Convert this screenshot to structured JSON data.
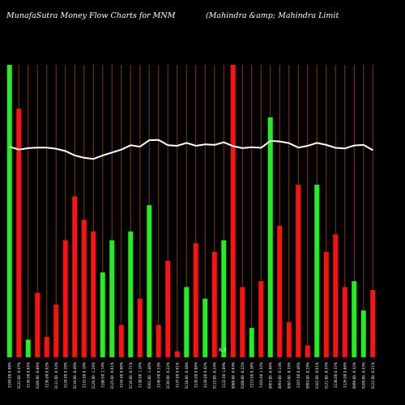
{
  "title_left": "MunafaSutra  Money Flow  Charts for MNM",
  "title_right": "(Mahindra  &amp;  Mahindra  Limit",
  "colors": {
    "background": "#000000",
    "up": "#22ee22",
    "down": "#ff1111",
    "grid": "#7a3c0a",
    "line": "#ffffff",
    "text": "#ffffff"
  },
  "chart_data": {
    "type": "bar",
    "title": "MunafaSutra  Money Flow  Charts for MNM",
    "ylim": [
      0,
      100
    ],
    "grid": true,
    "categories": [
      "3169.00 0.99%",
      "3121.00 -0.47%",
      "3136.00 0.65%",
      "3109.00 -0.86%",
      "3136.00 0.92%",
      "3111.00 -0.54%",
      "3128.00 0.29%",
      "3119.00 -0.40%",
      "3132.00 0.10%",
      "3129.00 -1.26%",
      "3180.00 1.74%",
      "3125.00 -0.61%",
      "3144.00 0.90%",
      "3116.00 -0.71%",
      "3138.00 1.16%",
      "3102.00 -1.40%",
      "3146.00 0.53%",
      "3130.00 -0.22%",
      "3137.00 0.61%",
      "3118.00 -0.38%",
      "3130.00 0.06%",
      "3128.00 0.42%",
      "3115.00 -0.24%",
      "3122.00 1.09%",
      "3088.00 -0.64%",
      "3108.00 -0.22%",
      "3115.00 0.38%",
      "3103.00 1.32%",
      "3063.00 -0.96%",
      "3093.00 -0.14%",
      "3097.00 -0.33%",
      "3107.00 0.46%",
      "3093.00 -0.29%",
      "3102.00 -0.61%",
      "3121.00 -0.55%",
      "3138.00 0.37%",
      "3126.00 0.86%",
      "3099.00 -0.32%",
      "3109.00 -0.43%",
      "3122.00 -0.21%"
    ],
    "values": [
      100,
      85,
      6,
      22,
      7,
      18,
      40,
      55,
      47,
      43,
      29,
      40,
      11,
      43,
      20,
      52,
      11,
      33,
      2,
      24,
      39,
      20,
      36,
      40,
      100,
      24,
      10,
      26,
      82,
      45,
      12,
      59,
      4,
      59,
      36,
      42,
      24,
      26,
      16,
      23
    ],
    "directions": [
      "up",
      "down",
      "up",
      "down",
      "down",
      "down",
      "down",
      "down",
      "down",
      "down",
      "up",
      "up",
      "down",
      "up",
      "down",
      "up",
      "down",
      "down",
      "down",
      "up",
      "down",
      "up",
      "down",
      "up",
      "down",
      "down",
      "up",
      "down",
      "up",
      "down",
      "down",
      "down",
      "down",
      "up",
      "down",
      "down",
      "down",
      "up",
      "up",
      "down"
    ],
    "series": [
      {
        "type": "line",
        "values": [
          72,
          71,
          71.5,
          71.7,
          71.7,
          71.3,
          70.5,
          69,
          68.2,
          67.8,
          69,
          70,
          71,
          72.5,
          72,
          74.2,
          74.3,
          72.5,
          72.3,
          73.3,
          72.3,
          72.8,
          72.6,
          73.5,
          72.2,
          71.5,
          71.8,
          71.6,
          74,
          73.8,
          73.2,
          71.7,
          72.3,
          73.3,
          72.6,
          71.6,
          71.4,
          72.4,
          72.6,
          70.8
        ]
      }
    ],
    "annotation": "6.3"
  }
}
